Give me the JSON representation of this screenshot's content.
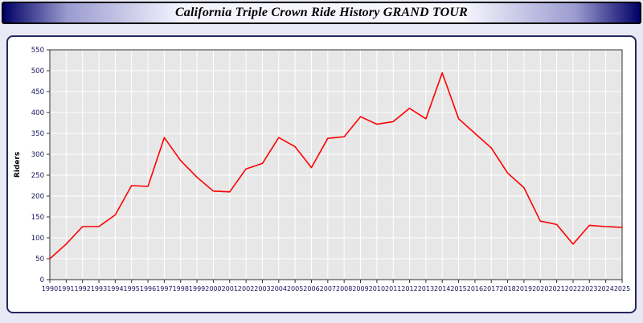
{
  "header": {
    "title": "California Triple Crown Ride History GRAND TOUR"
  },
  "chart_data": {
    "type": "line",
    "title": "California Triple Crown Ride History GRAND TOUR",
    "xlabel": "",
    "ylabel": "Riders",
    "ylim": [
      0,
      550
    ],
    "ytick_step": 50,
    "grid": true,
    "plot_bg": "#e7e7e7",
    "grid_color": "#ffffff",
    "axis_color": "#303030",
    "tick_label_color": "#14145a",
    "x": [
      1990,
      1991,
      1992,
      1993,
      1994,
      1995,
      1996,
      1997,
      1998,
      1999,
      2000,
      2001,
      2002,
      2003,
      2004,
      2005,
      2006,
      2007,
      2008,
      2009,
      2010,
      2011,
      2012,
      2013,
      2014,
      2015,
      2016,
      2017,
      2018,
      2019,
      2020,
      2021,
      2022,
      2023,
      2024,
      2025
    ],
    "series": [
      {
        "name": "Riders",
        "color": "#ff0000",
        "values": [
          50,
          85,
          127,
          127,
          155,
          225,
          223,
          340,
          285,
          245,
          212,
          210,
          265,
          278,
          340,
          318,
          268,
          338,
          342,
          390,
          372,
          378,
          410,
          385,
          495,
          385,
          350,
          315,
          255,
          220,
          140,
          132,
          85,
          130,
          127,
          125
        ]
      }
    ]
  }
}
